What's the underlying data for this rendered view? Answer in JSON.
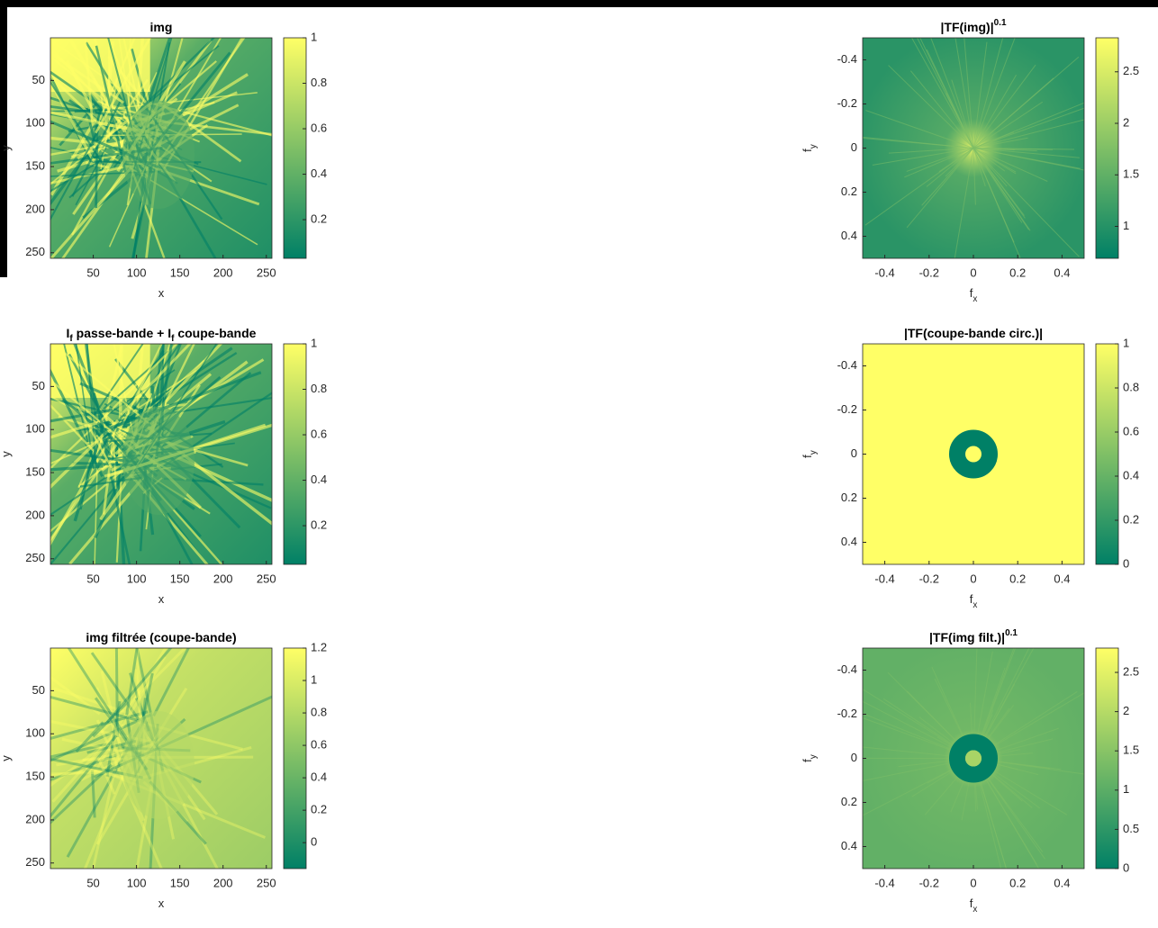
{
  "chart_data": [
    {
      "type": "image",
      "title": [
        {
          "text": "img"
        }
      ],
      "xlabel": [
        {
          "text": "x"
        }
      ],
      "ylabel": [
        {
          "text": "y"
        }
      ],
      "xlim": [
        0.5,
        256.5
      ],
      "ylim": [
        0.5,
        256.5
      ],
      "ydir": "reverse",
      "xticks": [
        50,
        100,
        150,
        200,
        250
      ],
      "yticks": [
        50,
        100,
        150,
        200,
        250
      ],
      "clim": [
        0.03,
        1
      ],
      "cticks": [
        0.2,
        0.4,
        0.6,
        0.8,
        1
      ],
      "colormap": [
        "#008066",
        "#ffff66"
      ]
    },
    {
      "type": "image",
      "title": [
        {
          "text": "|TF(img)|"
        },
        {
          "text": "0.1",
          "style": "sup"
        }
      ],
      "xlabel": [
        {
          "text": "f"
        },
        {
          "text": "x",
          "style": "sub"
        }
      ],
      "ylabel": [
        {
          "text": "f"
        },
        {
          "text": "y",
          "style": "sub"
        }
      ],
      "xlim": [
        -0.5,
        0.5
      ],
      "ylim": [
        -0.5,
        0.5
      ],
      "ydir": "reverse",
      "xticks": [
        -0.4,
        -0.2,
        0,
        0.2,
        0.4
      ],
      "yticks": [
        -0.4,
        -0.2,
        0,
        0.2,
        0.4
      ],
      "clim": [
        0.69,
        2.83
      ],
      "cticks": [
        1,
        1.5,
        2,
        2.5
      ],
      "colormap": [
        "#008066",
        "#ffff66"
      ]
    },
    {
      "type": "image",
      "title": [
        {
          "text": "I"
        },
        {
          "text": "f",
          "style": "sub"
        },
        {
          "text": " passe-bande + I"
        },
        {
          "text": "f",
          "style": "sub"
        },
        {
          "text": " coupe-bande"
        }
      ],
      "xlabel": [
        {
          "text": "x"
        }
      ],
      "ylabel": [
        {
          "text": "y"
        }
      ],
      "xlim": [
        0.5,
        256.5
      ],
      "ylim": [
        0.5,
        256.5
      ],
      "ydir": "reverse",
      "xticks": [
        50,
        100,
        150,
        200,
        250
      ],
      "yticks": [
        50,
        100,
        150,
        200,
        250
      ],
      "clim": [
        0.03,
        1
      ],
      "cticks": [
        0.2,
        0.4,
        0.6,
        0.8,
        1
      ],
      "colormap": [
        "#008066",
        "#ffff66"
      ]
    },
    {
      "type": "image",
      "title": [
        {
          "text": "|TF(coupe-bande circ.)|"
        }
      ],
      "xlabel": [
        {
          "text": "f"
        },
        {
          "text": "x",
          "style": "sub"
        }
      ],
      "ylabel": [
        {
          "text": "f"
        },
        {
          "text": "y",
          "style": "sub"
        }
      ],
      "xlim": [
        -0.5,
        0.5
      ],
      "ylim": [
        -0.5,
        0.5
      ],
      "ydir": "reverse",
      "xticks": [
        -0.4,
        -0.2,
        0,
        0.2,
        0.4
      ],
      "yticks": [
        -0.4,
        -0.2,
        0,
        0.2,
        0.4
      ],
      "clim": [
        0,
        1
      ],
      "cticks": [
        0,
        0.2,
        0.4,
        0.6,
        0.8,
        1
      ],
      "colormap": [
        "#008066",
        "#ffff66"
      ]
    },
    {
      "type": "image",
      "title": [
        {
          "text": "img filtrée (coupe-bande)"
        }
      ],
      "xlabel": [
        {
          "text": "x"
        }
      ],
      "ylabel": [
        {
          "text": "y"
        }
      ],
      "xlim": [
        0.5,
        256.5
      ],
      "ylim": [
        0.5,
        256.5
      ],
      "ydir": "reverse",
      "xticks": [
        50,
        100,
        150,
        200,
        250
      ],
      "yticks": [
        50,
        100,
        150,
        200,
        250
      ],
      "clim": [
        -0.16,
        1.2
      ],
      "cticks": [
        0,
        0.2,
        0.4,
        0.6,
        0.8,
        1,
        1.2
      ],
      "colormap": [
        "#008066",
        "#ffff66"
      ]
    },
    {
      "type": "image",
      "title": [
        {
          "text": "|TF(img filt.)|"
        },
        {
          "text": "0.1",
          "style": "sup"
        }
      ],
      "xlabel": [
        {
          "text": "f"
        },
        {
          "text": "x",
          "style": "sub"
        }
      ],
      "ylabel": [
        {
          "text": "f"
        },
        {
          "text": "y",
          "style": "sub"
        }
      ],
      "xlim": [
        -0.5,
        0.5
      ],
      "ylim": [
        -0.5,
        0.5
      ],
      "ydir": "reverse",
      "xticks": [
        -0.4,
        -0.2,
        0,
        0.2,
        0.4
      ],
      "yticks": [
        -0.4,
        -0.2,
        0,
        0.2,
        0.4
      ],
      "clim": [
        0,
        2.81
      ],
      "cticks": [
        0,
        0.5,
        1,
        1.5,
        2,
        2.5
      ],
      "colormap": [
        "#008066",
        "#ffff66"
      ]
    }
  ]
}
